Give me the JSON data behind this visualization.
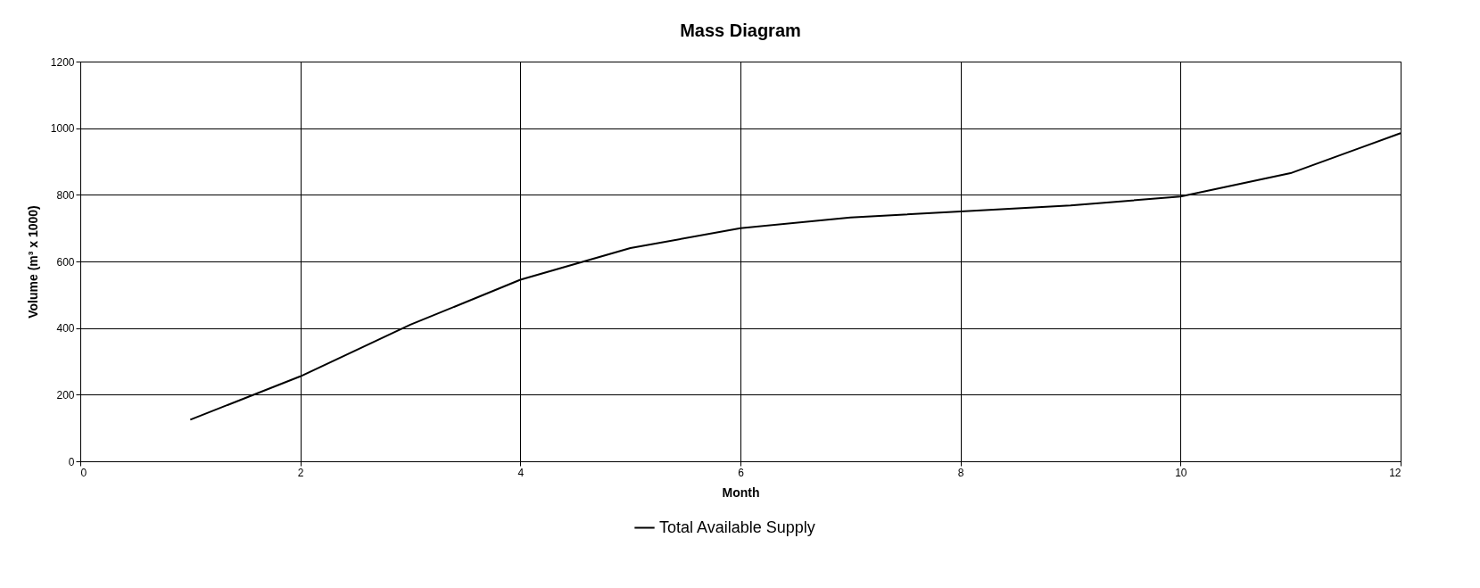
{
  "chart_data": {
    "type": "line",
    "title": "Mass Diagram",
    "xlabel": "Month",
    "ylabel": "Volume (m³ x 1000)",
    "x": [
      1,
      2,
      3,
      4,
      5,
      6,
      7,
      8,
      9,
      10,
      11,
      12
    ],
    "series": [
      {
        "name": "Total Available Supply",
        "color": "#000000",
        "values": [
          125,
          255,
          410,
          545,
          640,
          700,
          732,
          750,
          768,
          795,
          865,
          985
        ]
      }
    ],
    "xlim": [
      0,
      12
    ],
    "xticks": [
      0,
      2,
      4,
      6,
      8,
      10,
      12
    ],
    "ylim": [
      0,
      1200
    ],
    "yticks": [
      0,
      200,
      400,
      600,
      800,
      1000,
      1200
    ],
    "grid": true,
    "legend": "bottom",
    "marker": "none",
    "line_style": "solid"
  }
}
